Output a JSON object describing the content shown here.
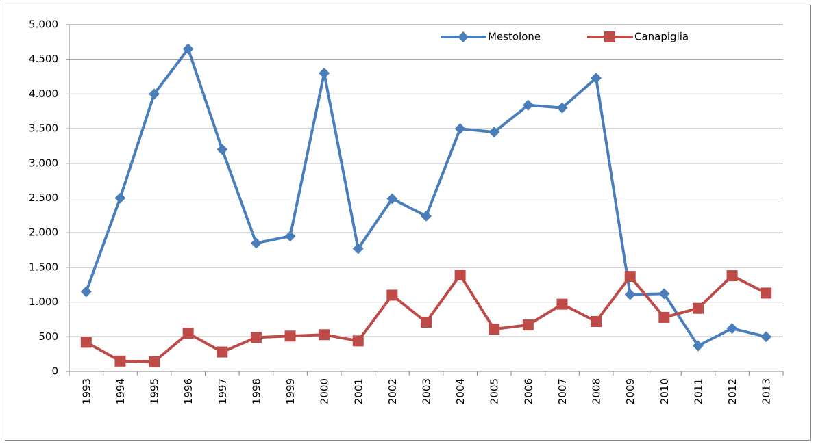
{
  "chart_data": {
    "type": "line",
    "categories": [
      "1993",
      "1994",
      "1995",
      "1996",
      "1997",
      "1998",
      "1999",
      "2000",
      "2001",
      "2002",
      "2003",
      "2004",
      "2005",
      "2006",
      "2007",
      "2008",
      "2009",
      "2010",
      "2011",
      "2012",
      "2013"
    ],
    "series": [
      {
        "name": "Mestolone",
        "color": "#4a7ebb",
        "marker": "diamond",
        "values": [
          1150,
          2500,
          4000,
          4650,
          3200,
          1850,
          1950,
          4300,
          1770,
          2490,
          2240,
          3500,
          3450,
          3840,
          3800,
          4230,
          1110,
          1120,
          370,
          620,
          500
        ]
      },
      {
        "name": "Canapiglia",
        "color": "#be4b48",
        "marker": "square",
        "values": [
          420,
          150,
          140,
          550,
          280,
          490,
          510,
          530,
          440,
          1100,
          710,
          1390,
          610,
          670,
          970,
          720,
          1370,
          780,
          910,
          1380,
          1130
        ]
      }
    ],
    "ylim": [
      0,
      5000
    ],
    "yticks": [
      0,
      500,
      {
        "value": 1000,
        "label": "1.000"
      },
      {
        "value": 1500,
        "label": "1.500"
      },
      {
        "value": 2000,
        "label": "2.000"
      },
      {
        "value": 2500,
        "label": "2.500"
      },
      {
        "value": 3000,
        "label": "3.000"
      },
      {
        "value": 3500,
        "label": "3.500"
      },
      {
        "value": 4000,
        "label": "4.000"
      },
      {
        "value": 4500,
        "label": "4.500"
      },
      {
        "value": 5000,
        "label": "5.000"
      }
    ],
    "grid": true,
    "legend": "top"
  }
}
